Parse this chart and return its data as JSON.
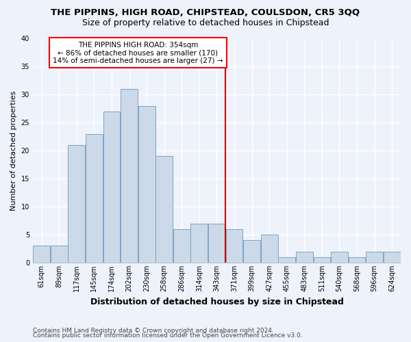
{
  "title": "THE PIPPINS, HIGH ROAD, CHIPSTEAD, COULSDON, CR5 3QQ",
  "subtitle": "Size of property relative to detached houses in Chipstead",
  "xlabel": "Distribution of detached houses by size in Chipstead",
  "ylabel": "Number of detached properties",
  "footer1": "Contains HM Land Registry data © Crown copyright and database right 2024.",
  "footer2": "Contains public sector information licensed under the Open Government Licence v3.0.",
  "annotation_line1": "THE PIPPINS HIGH ROAD: 354sqm",
  "annotation_line2": "← 86% of detached houses are smaller (170)",
  "annotation_line3": "14% of semi-detached houses are larger (27) →",
  "bar_color": "#ccd9e8",
  "bar_edge_color": "#7ba4c7",
  "marker_color": "#cc0000",
  "marker_bar_index": 10,
  "categories": [
    "61sqm",
    "89sqm",
    "117sqm",
    "145sqm",
    "174sqm",
    "202sqm",
    "230sqm",
    "258sqm",
    "286sqm",
    "314sqm",
    "343sqm",
    "371sqm",
    "399sqm",
    "427sqm",
    "455sqm",
    "483sqm",
    "511sqm",
    "540sqm",
    "568sqm",
    "596sqm",
    "624sqm"
  ],
  "values": [
    3,
    3,
    21,
    23,
    27,
    31,
    28,
    19,
    6,
    7,
    7,
    6,
    4,
    5,
    1,
    2,
    1,
    2,
    1,
    2,
    2
  ],
  "ylim": [
    0,
    40
  ],
  "yticks": [
    0,
    5,
    10,
    15,
    20,
    25,
    30,
    35,
    40
  ],
  "background_color": "#eef2fa",
  "grid_color": "#ffffff",
  "title_fontsize": 9.5,
  "subtitle_fontsize": 9,
  "ylabel_fontsize": 8,
  "xlabel_fontsize": 9,
  "tick_fontsize": 7,
  "footer_fontsize": 6.5,
  "annotation_fontsize": 7.5
}
